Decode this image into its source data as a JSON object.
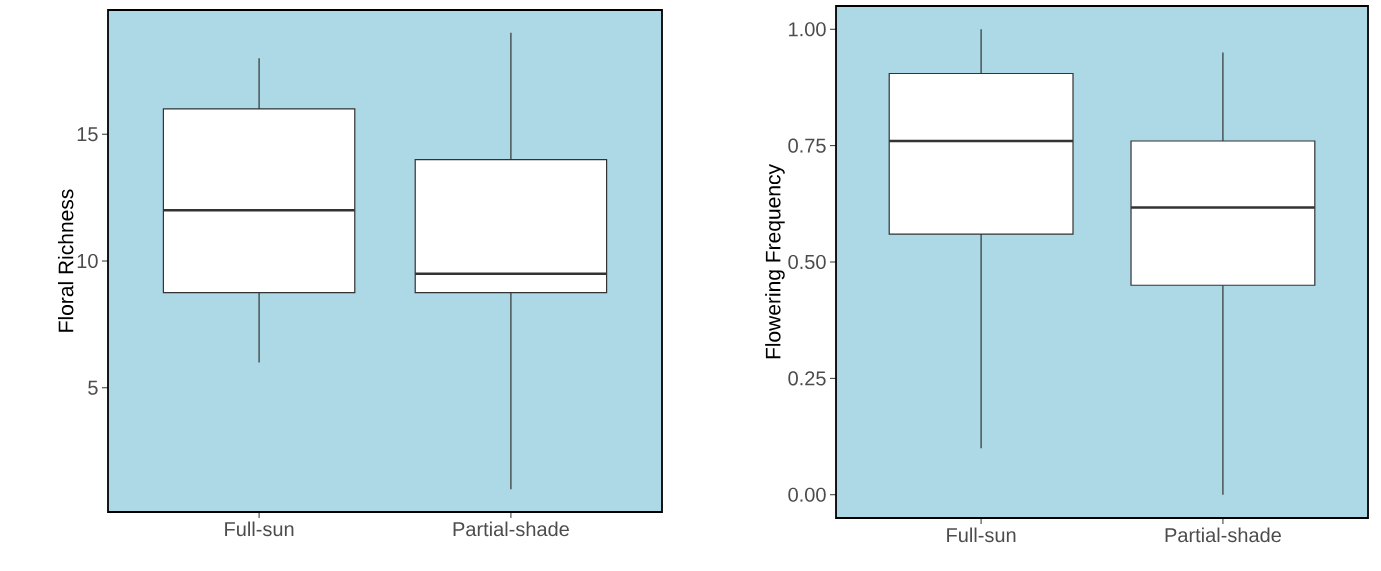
{
  "chart_data": [
    {
      "type": "box",
      "ylabel": "Floral Richness",
      "categories": [
        "Full-sun",
        "Partial-shade"
      ],
      "boxes": [
        {
          "low": 6,
          "q1": 8.75,
          "median": 12,
          "q3": 16,
          "high": 18
        },
        {
          "low": 1,
          "q1": 8.75,
          "median": 9.5,
          "q3": 14,
          "high": 19
        }
      ],
      "ylim": [
        0.1,
        19.9
      ],
      "yticks": [
        5,
        10,
        15
      ]
    },
    {
      "type": "box",
      "ylabel": "Flowering Frequency",
      "categories": [
        "Full-sun",
        "Partial-shade"
      ],
      "boxes": [
        {
          "low": 0.1,
          "q1": 0.56,
          "median": 0.76,
          "q3": 0.905,
          "high": 1.0
        },
        {
          "low": 0.0,
          "q1": 0.45,
          "median": 0.617,
          "q3": 0.76,
          "high": 0.95
        }
      ],
      "ylim": [
        -0.05,
        1.05
      ],
      "yticks": [
        {
          "value": 0,
          "label": "0.00"
        },
        {
          "value": 0.25,
          "label": "0.25"
        },
        {
          "value": 0.5,
          "label": "0.50"
        },
        {
          "value": 0.75,
          "label": "0.75"
        },
        {
          "value": 1.0,
          "label": "1.00"
        }
      ]
    }
  ]
}
